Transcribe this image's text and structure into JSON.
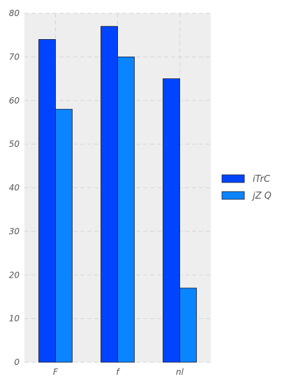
{
  "chart_data": {
    "type": "bar",
    "categories": [
      "F",
      "f",
      "nl"
    ],
    "series": [
      {
        "name": "iTrC",
        "values": [
          74,
          77,
          65
        ],
        "color": "#0044ff"
      },
      {
        "name": "jZ Q",
        "values": [
          58,
          70,
          17
        ],
        "color": "#0a84ff"
      }
    ],
    "ylim": [
      0,
      80
    ],
    "yticks": [
      0,
      10,
      20,
      30,
      40,
      50,
      60,
      70,
      80
    ],
    "grid": true,
    "legend_position": "right",
    "plot_background": "#eeeeee",
    "grid_color": "#d5d5d5"
  }
}
